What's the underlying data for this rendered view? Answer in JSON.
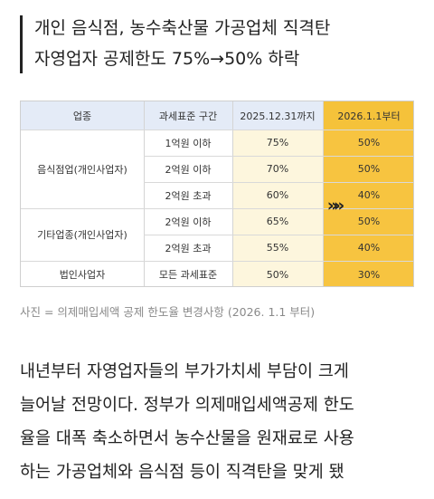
{
  "headline": {
    "line1": "개인 음식점, 농수축산물 가공업체 직격탄",
    "line2": "자영업자 공제한도 75%→50% 하락"
  },
  "table": {
    "headers": [
      "업종",
      "과세표준 구간",
      "2025.12.31까지",
      "2026.1.1부터"
    ],
    "groups": [
      "음식점업(개인사업자)",
      "기타업종(개인사업자)",
      "법인사업자"
    ],
    "rows": [
      {
        "bracket": "1억원 이하",
        "old": "75%",
        "new": "50%"
      },
      {
        "bracket": "2억원 이하",
        "old": "70%",
        "new": "50%"
      },
      {
        "bracket": "2억원 초과",
        "old": "60%",
        "new": "40%"
      },
      {
        "bracket": "2억원 이하",
        "old": "65%",
        "new": "50%"
      },
      {
        "bracket": "2억원 초과",
        "old": "55%",
        "new": "40%"
      },
      {
        "bracket": "모든 과세표준",
        "old": "50%",
        "new": "30%"
      }
    ],
    "arrow": "»»"
  },
  "caption": "사진 = 의제매입세액 공제 한도율 변경사항 (2026. 1.1 부터)",
  "body": {
    "lines": [
      "내년부터 자영업자들의 부가가치세 부담이 크게",
      "늘어날 전망이다. 정부가 의제매입세액공제 한도",
      "율을 대폭 축소하면서 농수산물을 원재료로 사용",
      "하는 가공업체와 음식점 등이 직격탄을 맞게 됐"
    ]
  },
  "colors": {
    "header_bg": "#e4ebf7",
    "new_header_bg": "#f5c23a",
    "old_col_bg": "#fdf6dd",
    "new_col_bg": "#f7c440"
  }
}
